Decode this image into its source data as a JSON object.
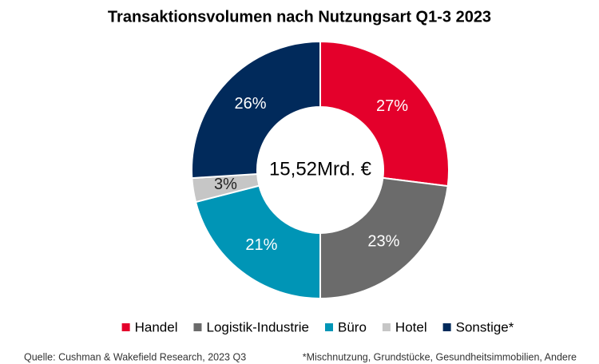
{
  "chart_data": {
    "type": "donut",
    "title": "Transaktionsvolumen nach Nutzungsart Q1-3 2023",
    "center_label": "15,52Mrd. €",
    "categories": [
      "Handel",
      "Logistik-Industrie",
      "Büro",
      "Hotel",
      "Sonstige*"
    ],
    "values": [
      27,
      23,
      21,
      3,
      26
    ],
    "value_labels": [
      "27%",
      "23%",
      "21%",
      "3%",
      "26%"
    ],
    "colors": [
      "#e4002b",
      "#6b6b6b",
      "#0095b6",
      "#c6c6c6",
      "#012a5b"
    ],
    "legend": "bottom"
  },
  "footer": {
    "source": "Quelle: Cushman & Wakefield Research, 2023 Q3",
    "note": "*Mischnutzung, Grundstücke, Gesundheitsimmobilien, Andere"
  }
}
